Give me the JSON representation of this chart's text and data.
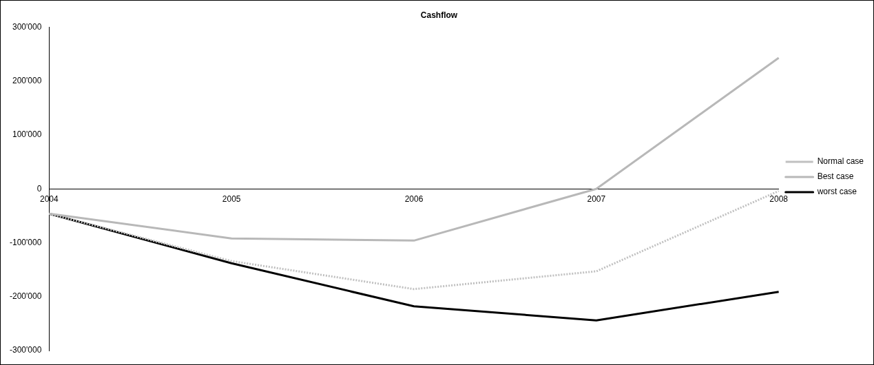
{
  "chart_data": {
    "type": "line",
    "title": "Cashflow",
    "categories": [
      "2004",
      "2005",
      "2006",
      "2007",
      "2008"
    ],
    "series": [
      {
        "name": "Normal case",
        "color": "#c0c0c0",
        "line_style": "dotted",
        "values": [
          -46000,
          -134000,
          -186000,
          -153000,
          -4000
        ]
      },
      {
        "name": "Best case",
        "color": "#b8b8b8",
        "values": [
          -46000,
          -92000,
          -96000,
          0,
          243000
        ]
      },
      {
        "name": "worst case",
        "color": "#000000",
        "values": [
          -46000,
          -138000,
          -218000,
          -244000,
          -191000
        ]
      }
    ],
    "ylim": [
      -300000,
      300000
    ],
    "yticks": [
      {
        "value": -300000,
        "label": "-300'000"
      },
      {
        "value": -200000,
        "label": "-200'000"
      },
      {
        "value": -100000,
        "label": "-100'000"
      },
      {
        "value": 0,
        "label": "0"
      },
      {
        "value": 100000,
        "label": "100'000"
      },
      {
        "value": 200000,
        "label": "200'000"
      },
      {
        "value": 300000,
        "label": "300'000"
      }
    ],
    "grid": false,
    "legend": "right",
    "marker": "none"
  }
}
